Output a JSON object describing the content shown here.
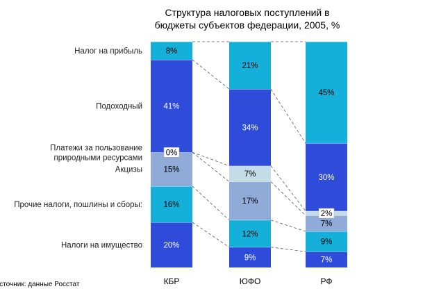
{
  "chart_data": {
    "type": "bar",
    "stacked": true,
    "percent": true,
    "title_lines": [
      "Структура налоговых поступлений в",
      "бюджеты субъектов федерации, 2005, %"
    ],
    "categories": [
      "КБР",
      "ЮФО",
      "РФ"
    ],
    "series": [
      {
        "name": "Налоги на имущество",
        "values": [
          20,
          9,
          7
        ],
        "color": "#2E4BD9",
        "label_color": "#ffffff"
      },
      {
        "name": "Прочие налоги, пошлины и сборы:",
        "values": [
          16,
          12,
          9
        ],
        "color": "#14B0DA",
        "label_color": "#000000"
      },
      {
        "name": "Акцизы",
        "values": [
          15,
          17,
          7
        ],
        "color": "#90ABD8",
        "label_color": "#000000"
      },
      {
        "name": "Платежи за пользование природными ресурсами",
        "values": [
          0,
          7,
          2
        ],
        "color": "#C4DCE8",
        "label_color": "#000000"
      },
      {
        "name": "Подоходный",
        "values": [
          41,
          34,
          30
        ],
        "color": "#2E4BD9",
        "label_color": "#ffffff"
      },
      {
        "name": "Налог на прибыль",
        "values": [
          8,
          21,
          45
        ],
        "color": "#14B0DA",
        "label_color": "#000000"
      }
    ],
    "series_label_lines": [
      [
        "Налоги на имущество"
      ],
      [
        "Прочие налоги, пошлины и сборы:"
      ],
      [
        "Акцизы"
      ],
      [
        "Платежи за пользование",
        "природными ресурсами"
      ],
      [
        "Подоходный"
      ],
      [
        "Налог на прибыль"
      ]
    ],
    "ylim": [
      0,
      100
    ],
    "legend": "left",
    "source": "Источник: данные Росстат"
  }
}
